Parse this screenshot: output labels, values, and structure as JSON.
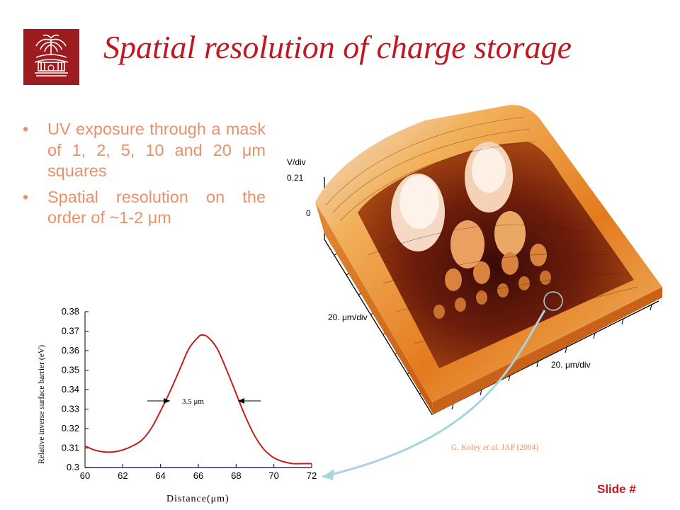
{
  "slide": {
    "title": "Spatial resolution of charge storage",
    "slide_number": "Slide #",
    "bullets": [
      {
        "marker": "•",
        "text": "UV exposure through a mask of 1, 2, 5, 10 and 20 μm squares"
      },
      {
        "marker": "•",
        "text": "Spatial resolution on the order of ~1-2 μm"
      }
    ],
    "citation": {
      "authors": "G. Koley ",
      "etal": "et al.",
      "journal": " JAP (2004)"
    },
    "colors": {
      "title": "#c0181e",
      "bullet_text": "#e8906a",
      "logo_bg": "#9e1b1f",
      "arrow": "#a8d4e0"
    }
  },
  "afm_image": {
    "zlabel": "V/div",
    "z_tick_top": "0.21",
    "z_tick_bottom": "0",
    "xlabel": "20. μm/div",
    "ylabel": "20. μm/div"
  },
  "chart_data": {
    "type": "line",
    "xlabel": "Distance(μm)",
    "ylabel": "Relative inverse surface barrier (eV)",
    "xlim": [
      60,
      72
    ],
    "ylim": [
      0.3,
      0.38
    ],
    "xticks": [
      "60",
      "62",
      "64",
      "66",
      "68",
      "70",
      "72"
    ],
    "yticks": [
      "0.3",
      "0.31",
      "0.32",
      "0.33",
      "0.34",
      "0.35",
      "0.36",
      "0.37",
      "0.38"
    ],
    "annotation": "3.5 μm",
    "line_color": "#c41e1e",
    "series": [
      {
        "x": [
          60,
          60.5,
          61,
          61.5,
          62,
          62.5,
          63,
          63.5,
          64,
          64.5,
          65,
          65.5,
          66,
          66.2,
          66.5,
          67,
          67.5,
          68,
          68.5,
          69,
          69.5,
          70,
          70.5,
          71,
          71.5,
          72
        ],
        "y": [
          0.311,
          0.309,
          0.308,
          0.308,
          0.309,
          0.311,
          0.314,
          0.32,
          0.329,
          0.339,
          0.35,
          0.361,
          0.367,
          0.368,
          0.367,
          0.361,
          0.35,
          0.338,
          0.326,
          0.316,
          0.309,
          0.305,
          0.303,
          0.302,
          0.302,
          0.302
        ]
      }
    ]
  }
}
